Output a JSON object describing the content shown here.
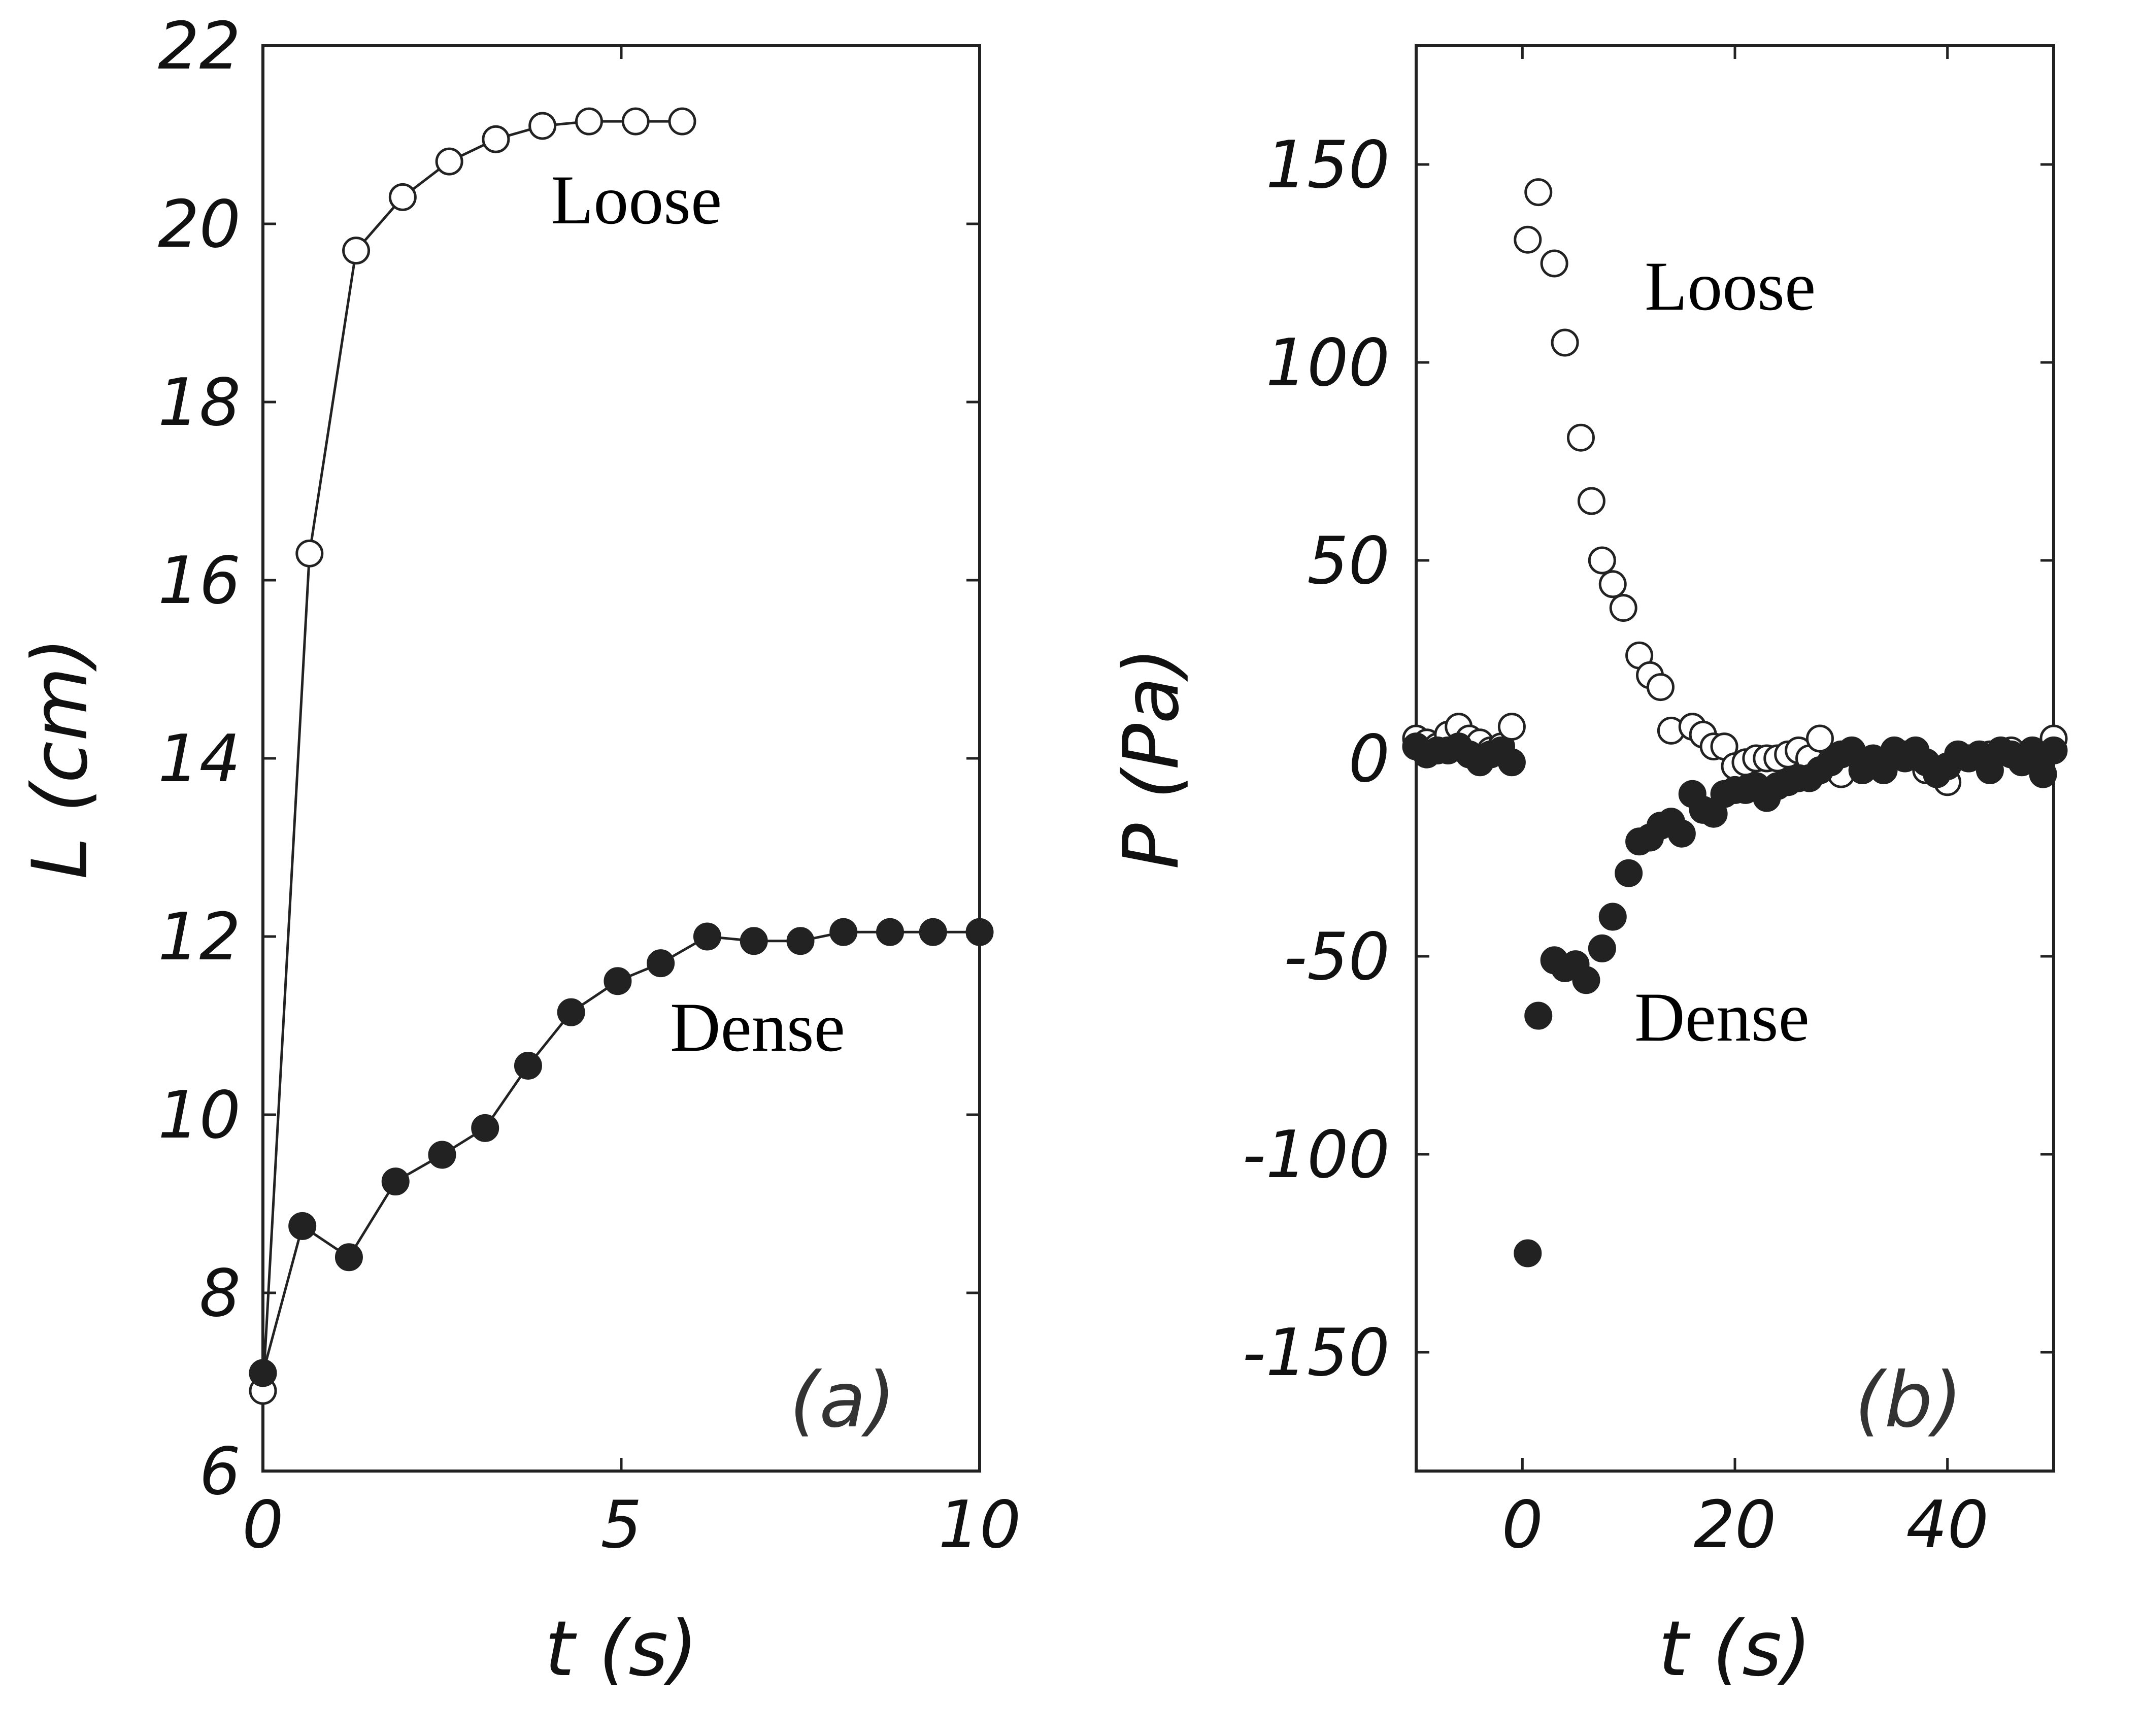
{
  "chart_data": [
    {
      "type": "line",
      "panel_label": "(a)",
      "xlabel": "t (s)",
      "ylabel": "L (cm)",
      "xlim": [
        0,
        10
      ],
      "ylim": [
        6,
        22
      ],
      "xticks": [
        0,
        5,
        10
      ],
      "yticks": [
        6,
        8,
        10,
        12,
        14,
        16,
        18,
        20,
        22
      ],
      "grid": false,
      "series": [
        {
          "marker": "open-circle",
          "annotation": "Loose",
          "x": [
            0,
            0.65,
            1.3,
            1.95,
            2.6,
            3.25,
            3.9,
            4.55,
            5.2,
            5.85
          ],
          "y": [
            6.9,
            16.3,
            19.7,
            20.3,
            20.7,
            20.95,
            21.1,
            21.15,
            21.15,
            21.15
          ]
        },
        {
          "marker": "filled-circle",
          "annotation": "Dense",
          "x": [
            0,
            0.55,
            1.2,
            1.85,
            2.5,
            3.1,
            3.7,
            4.3,
            4.95,
            5.55,
            6.2,
            6.85,
            7.5,
            8.1,
            8.75,
            9.35,
            10.0
          ],
          "y": [
            7.1,
            8.75,
            8.4,
            9.25,
            9.55,
            9.85,
            10.55,
            11.15,
            11.5,
            11.7,
            12.0,
            11.95,
            11.95,
            12.05,
            12.05,
            12.05,
            12.05
          ]
        }
      ]
    },
    {
      "type": "scatter",
      "panel_label": "(b)",
      "xlabel": "t (s)",
      "ylabel": "P (Pa)",
      "xlim": [
        -10,
        50
      ],
      "ylim": [
        -180,
        180
      ],
      "xticks": [
        0,
        20,
        40
      ],
      "yticks": [
        -150,
        -100,
        -50,
        0,
        50,
        100,
        150
      ],
      "grid": false,
      "series": [
        {
          "marker": "open-circle",
          "annotation": "Loose",
          "x": [
            -10,
            -9,
            -8,
            -7,
            -6,
            -5,
            -4,
            -3,
            -2,
            -1,
            0.5,
            1.5,
            3,
            4,
            5.5,
            6.5,
            7.5,
            8.5,
            9.5,
            11,
            12,
            13,
            14,
            16,
            17,
            18,
            19,
            20,
            21,
            22,
            23,
            24,
            25,
            26,
            27,
            28,
            30,
            32,
            34,
            36,
            38,
            40,
            42,
            44,
            46,
            48,
            50
          ],
          "y": [
            5,
            4,
            3,
            6,
            8,
            5,
            4,
            2,
            3,
            8,
            131,
            143,
            125,
            105,
            81,
            65,
            50,
            44,
            38,
            26,
            21,
            18,
            7,
            8,
            6,
            3,
            3,
            -2,
            -1,
            0,
            0,
            0,
            1,
            2,
            0,
            5,
            -4,
            -3,
            -2,
            1,
            -3,
            -6,
            0,
            1,
            2,
            1,
            5
          ]
        },
        {
          "marker": "filled-circle",
          "annotation": "Dense",
          "x": [
            -10,
            -9,
            -8,
            -7,
            -6,
            -5,
            -4,
            -3,
            -2,
            -1,
            0.5,
            1.5,
            3,
            4,
            5,
            6,
            7.5,
            8.5,
            10,
            11,
            12,
            13,
            14,
            15,
            16,
            17,
            18,
            19,
            20,
            21,
            22,
            23,
            24,
            25,
            26,
            27,
            28,
            29,
            30,
            31,
            32,
            33,
            34,
            35,
            36,
            37,
            38,
            39,
            40,
            41,
            42,
            43,
            44,
            45,
            46,
            47,
            48,
            49,
            50
          ],
          "y": [
            3,
            1,
            2,
            2,
            3,
            1,
            -1,
            1,
            2,
            -1,
            -125,
            -65,
            -51,
            -53,
            -52,
            -56,
            -48,
            -40,
            -29,
            -21,
            -20,
            -17,
            -16,
            -19,
            -9,
            -13,
            -14,
            -9,
            -8,
            -8,
            -7,
            -10,
            -7,
            -6,
            -5,
            -5,
            -3,
            -1,
            1,
            2,
            -3,
            0,
            -3,
            2,
            0,
            2,
            -1,
            -4,
            -2,
            1,
            0,
            1,
            -3,
            2,
            1,
            -1,
            2,
            -4,
            2
          ]
        }
      ]
    }
  ]
}
